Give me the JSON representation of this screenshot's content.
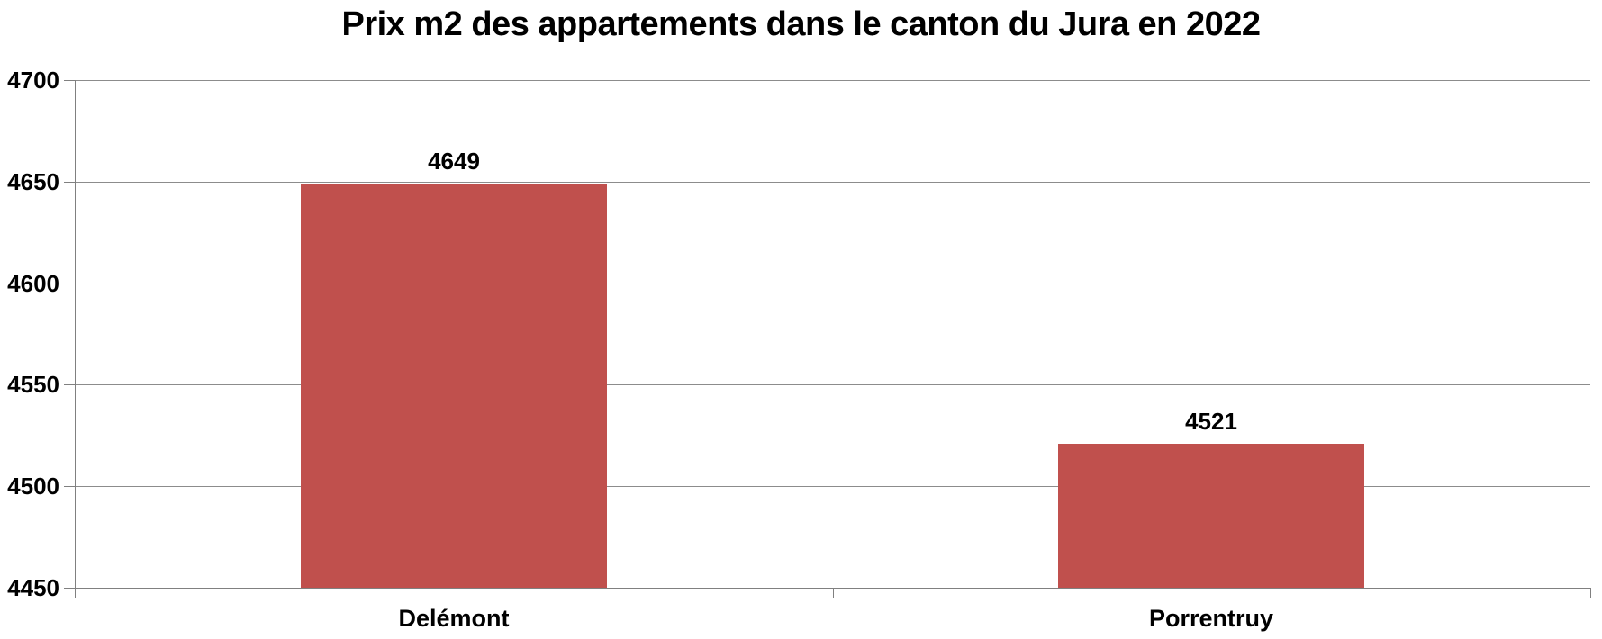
{
  "chart_data": {
    "type": "bar",
    "title": "Prix m2 des appartements dans le canton du Jura en 2022",
    "categories": [
      "Delémont",
      "Porrentruy"
    ],
    "values": [
      4649,
      4521
    ],
    "data_labels": [
      "4649",
      "4521"
    ],
    "yticks": [
      4450,
      4500,
      4550,
      4600,
      4650,
      4700
    ],
    "ylim": [
      4450,
      4700
    ],
    "xlabel": "",
    "ylabel": "",
    "grid": true,
    "legend": false,
    "colors": {
      "bar_fill": "#c0504d",
      "gridline": "#8c8c8c",
      "axis": "#808080",
      "text": "#000000",
      "background": "#ffffff"
    }
  }
}
